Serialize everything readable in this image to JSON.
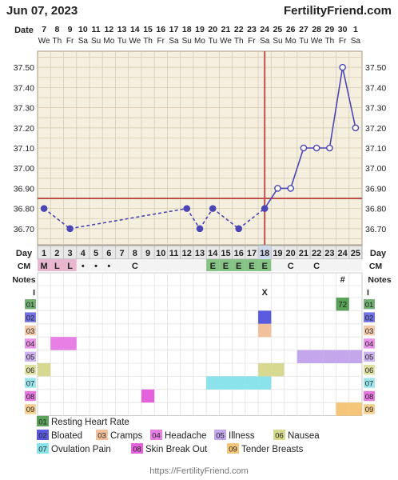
{
  "header": {
    "date": "Jun 07, 2023",
    "site": "FertilityFriend.com"
  },
  "labels": {
    "date_row": "Date",
    "day_row": "Day",
    "cm_row": "CM",
    "notes_row": "Notes",
    "intercourse_row": "I"
  },
  "footer": {
    "url": "https://FertilityFriend.com"
  },
  "colors": {
    "temp_line": "#4b45b5",
    "coverline": "#c0504d",
    "ovulation_line": "#c0504d",
    "grid_bg": "#f5efdf",
    "grid_line": "#d8cdb2"
  },
  "chart_data": {
    "type": "line",
    "dates": [
      "7",
      "8",
      "9",
      "10",
      "11",
      "12",
      "13",
      "14",
      "15",
      "16",
      "17",
      "18",
      "19",
      "20",
      "21",
      "22",
      "23",
      "24",
      "25",
      "26",
      "27",
      "28",
      "29",
      "30",
      "1"
    ],
    "weekdays": [
      "We",
      "Th",
      "Fr",
      "Sa",
      "Su",
      "Mo",
      "Tu",
      "We",
      "Th",
      "Fr",
      "Sa",
      "Su",
      "Mo",
      "Tu",
      "We",
      "Th",
      "Fr",
      "Sa",
      "Su",
      "Mo",
      "Tu",
      "We",
      "Th",
      "Fr",
      "Sa"
    ],
    "cycle_days": [
      1,
      2,
      3,
      4,
      5,
      6,
      7,
      8,
      9,
      10,
      11,
      12,
      13,
      14,
      15,
      16,
      17,
      18,
      19,
      20,
      21,
      22,
      23,
      24,
      25
    ],
    "temperatures": [
      36.8,
      null,
      36.7,
      null,
      null,
      null,
      null,
      null,
      null,
      null,
      null,
      36.8,
      36.7,
      36.8,
      null,
      36.7,
      null,
      36.8,
      36.9,
      36.9,
      37.1,
      37.1,
      37.1,
      37.5,
      37.2
    ],
    "y_ticks": [
      "36.70",
      "36.80",
      "36.90",
      "37.00",
      "37.10",
      "37.20",
      "37.30",
      "37.40",
      "37.50"
    ],
    "ylim": [
      36.62,
      37.58
    ],
    "coverline": 36.85,
    "ovulation_day": 18,
    "grid": true,
    "cervical_mucus": [
      "M",
      "L",
      "L",
      "•",
      "•",
      "•",
      "",
      "C",
      "",
      "",
      "",
      "",
      "",
      "E",
      "E",
      "E",
      "E",
      "E",
      "",
      "C",
      "",
      "C",
      "",
      "",
      ""
    ],
    "notes": [
      "",
      "",
      "",
      "",
      "",
      "",
      "",
      "",
      "",
      "",
      "",
      "",
      "",
      "",
      "",
      "",
      "",
      "",
      "",
      "",
      "",
      "",
      "",
      "#",
      ""
    ],
    "intercourse": [
      "",
      "",
      "",
      "",
      "",
      "",
      "",
      "",
      "",
      "",
      "",
      "",
      "",
      "",
      "",
      "",
      "",
      "X",
      "",
      "",
      "",
      "",
      "",
      "",
      ""
    ],
    "symptom_codes": [
      "01",
      "02",
      "03",
      "04",
      "05",
      "06",
      "07",
      "08",
      "09"
    ],
    "symptoms": [
      {
        "code": "01",
        "name": "Resting Heart Rate",
        "color": "#5aa15a",
        "days": [
          24
        ],
        "values": [
          "72"
        ]
      },
      {
        "code": "02",
        "name": "Bloated",
        "color": "#5a5ae0",
        "days": [
          18
        ]
      },
      {
        "code": "03",
        "name": "Cramps",
        "color": "#f2c19c",
        "days": [
          18
        ]
      },
      {
        "code": "04",
        "name": "Headache",
        "color": "#e77fe4",
        "days": [
          2,
          3
        ]
      },
      {
        "code": "05",
        "name": "Illness",
        "color": "#c3a6ec",
        "days": [
          21,
          22,
          23,
          24,
          25
        ]
      },
      {
        "code": "06",
        "name": "Nausea",
        "color": "#d8d991",
        "days": [
          1,
          18,
          19
        ]
      },
      {
        "code": "07",
        "name": "Ovulation Pain",
        "color": "#8ae3ea",
        "days": [
          14,
          15,
          16,
          17,
          18
        ]
      },
      {
        "code": "08",
        "name": "Skin Break Out",
        "color": "#e562dd",
        "days": [
          9
        ]
      },
      {
        "code": "09",
        "name": "Tender Breasts",
        "color": "#f5c67a",
        "days": [
          24,
          25
        ]
      }
    ]
  }
}
